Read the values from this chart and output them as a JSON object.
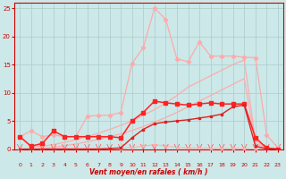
{
  "bg_color": "#cce8e8",
  "grid_color": "#aacccc",
  "xlabel": "Vent moyen/en rafales ( km/h )",
  "xlim": [
    0,
    23
  ],
  "ylim": [
    0,
    26
  ],
  "xticks": [
    0,
    1,
    2,
    3,
    4,
    5,
    6,
    7,
    8,
    9,
    10,
    11,
    12,
    13,
    14,
    15,
    16,
    17,
    18,
    19,
    20,
    21,
    22,
    23
  ],
  "yticks": [
    0,
    5,
    10,
    15,
    20,
    25
  ],
  "y_peak_pink": [
    2.2,
    3.2,
    2.2,
    2.5,
    2.2,
    2.2,
    5.8,
    6.0,
    6.0,
    6.5,
    15.2,
    18.0,
    25.0,
    23.0,
    16.0,
    15.5,
    19.0,
    16.5,
    16.5,
    16.5,
    16.3,
    16.2,
    2.5,
    0.2
  ],
  "y_lin_high": [
    2.2,
    0.4,
    0.5,
    0.8,
    1.2,
    1.7,
    2.2,
    2.8,
    3.5,
    4.2,
    5.0,
    6.0,
    7.0,
    8.2,
    9.5,
    11.0,
    12.0,
    13.0,
    14.0,
    15.0,
    15.8,
    1.5,
    0.1,
    0.0
  ],
  "y_lin_low": [
    0.0,
    0.0,
    0.1,
    0.3,
    0.6,
    0.9,
    1.3,
    1.7,
    2.2,
    2.7,
    3.3,
    4.0,
    4.8,
    5.6,
    6.5,
    7.5,
    8.5,
    9.5,
    10.5,
    11.5,
    12.5,
    1.0,
    0.05,
    0.0
  ],
  "y_sq_high": [
    2.2,
    0.5,
    1.0,
    3.2,
    2.2,
    2.2,
    2.2,
    2.2,
    2.2,
    2.0,
    5.0,
    6.5,
    8.5,
    8.2,
    8.0,
    7.8,
    8.0,
    8.2,
    8.0,
    8.0,
    8.0,
    2.0,
    0.2,
    0.0
  ],
  "y_sq_low": [
    0.0,
    0.0,
    0.0,
    0.0,
    0.0,
    0.0,
    0.0,
    0.0,
    0.1,
    0.2,
    2.0,
    3.5,
    4.5,
    4.8,
    5.0,
    5.2,
    5.5,
    5.8,
    6.2,
    7.5,
    7.8,
    0.5,
    0.05,
    0.0
  ],
  "y_near_zero_pink": [
    0.0,
    0.0,
    0.0,
    0.1,
    0.1,
    0.1,
    0.1,
    0.1,
    0.1,
    0.1,
    0.3,
    0.5,
    0.8,
    0.5,
    0.3,
    0.2,
    0.2,
    0.1,
    0.1,
    0.1,
    0.1,
    0.0,
    0.0,
    0.0
  ],
  "color_light_pink": "#ffaaaa",
  "color_med_pink": "#ff8888",
  "color_dark_red": "#dd2222",
  "color_bright_red": "#ff2222"
}
